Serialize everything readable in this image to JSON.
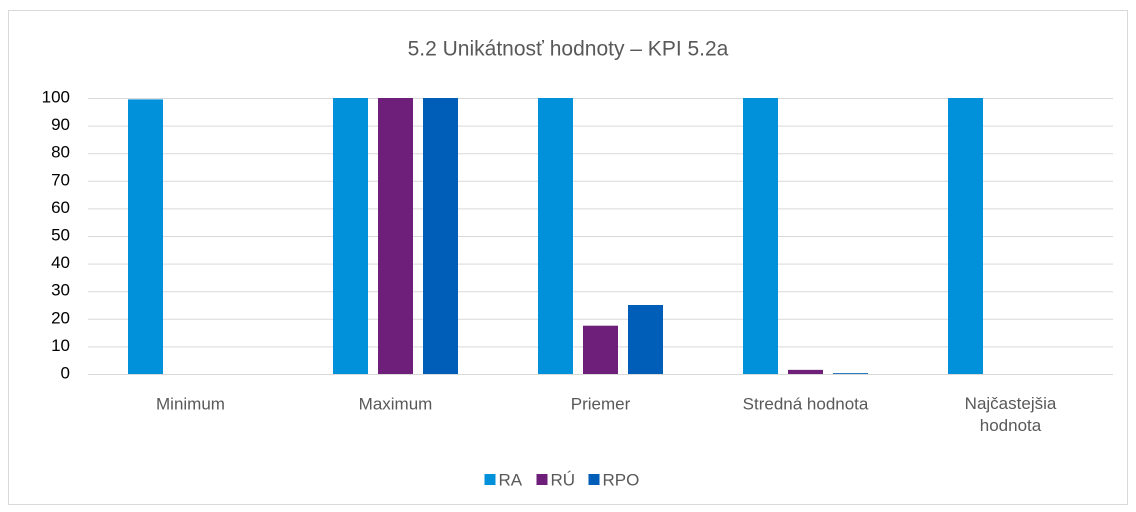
{
  "chart_data": {
    "type": "bar",
    "title": "5.2 Unikátnosť hodnoty – KPI 5.2a",
    "categories": [
      "Minimum",
      "Maximum",
      "Priemer",
      "Stredná hodnota",
      "Najčastejšia hodnota"
    ],
    "series": [
      {
        "name": "RA",
        "color": "#0091da",
        "values": [
          99.5,
          100,
          100,
          100,
          100
        ]
      },
      {
        "name": "RÚ",
        "color": "#6d1f7a",
        "values": [
          0,
          100,
          17.5,
          1.5,
          0
        ]
      },
      {
        "name": "RPO",
        "color": "#005eb8",
        "values": [
          0,
          100,
          25,
          0.3,
          0
        ]
      }
    ],
    "ylim": [
      0,
      100
    ],
    "yticks": [
      0,
      10,
      20,
      30,
      40,
      50,
      60,
      70,
      80,
      90,
      100
    ],
    "grid": true,
    "legend": "bottom"
  }
}
